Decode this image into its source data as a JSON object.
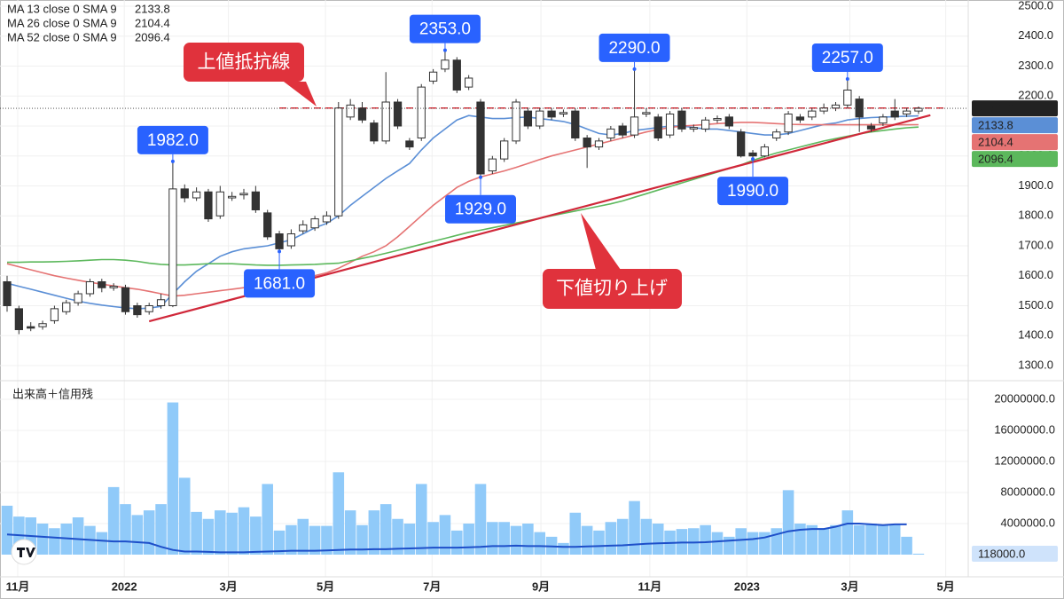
{
  "chart_data": {
    "type": "candlestick",
    "x": [
      0,
      1,
      2,
      3,
      4,
      5,
      6,
      7,
      8,
      9,
      10,
      11,
      12,
      13,
      14,
      15,
      16,
      17,
      18,
      19,
      20,
      21,
      22,
      23,
      24,
      25,
      26,
      27,
      28,
      29,
      30,
      31,
      32,
      33,
      34,
      35,
      36,
      37,
      38,
      39,
      40,
      41,
      42,
      43,
      44,
      45,
      46,
      47,
      48,
      49,
      50,
      51,
      52,
      53,
      54,
      55,
      56,
      57,
      58,
      59,
      60,
      61,
      62,
      63,
      64,
      65,
      66,
      67,
      68,
      69,
      70,
      71,
      72,
      73,
      74,
      75,
      76,
      77
    ],
    "open": [
      1580,
      1490,
      1430,
      1430,
      1450,
      1480,
      1510,
      1540,
      1580,
      1560,
      1560,
      1500,
      1480,
      1500,
      1500,
      1890,
      1860,
      1880,
      1800,
      1860,
      1870,
      1880,
      1810,
      1740,
      1700,
      1750,
      1760,
      1780,
      1800,
      2130,
      2160,
      2110,
      2050,
      2180,
      2050,
      2060,
      2250,
      2290,
      2320,
      2230,
      2180,
      1950,
      1990,
      2050,
      2150,
      2100,
      2150,
      2140,
      2150,
      2060,
      2030,
      2060,
      2100,
      2070,
      2140,
      2130,
      2070,
      2150,
      2090,
      2090,
      2120,
      2130,
      2080,
      2010,
      2000,
      2060,
      2080,
      2130,
      2130,
      2150,
      2160,
      2170,
      2190,
      2100,
      2110,
      2150,
      2140,
      2150
    ],
    "high": [
      1600,
      1500,
      1445,
      1450,
      1500,
      1520,
      1550,
      1590,
      1590,
      1575,
      1570,
      1510,
      1510,
      1540,
      1982,
      1905,
      1895,
      1890,
      1900,
      1880,
      1890,
      1900,
      1820,
      1750,
      1755,
      1785,
      1800,
      1815,
      2180,
      2190,
      2180,
      2120,
      2280,
      2190,
      2060,
      2240,
      2290,
      2353,
      2330,
      2270,
      2190,
      2000,
      2060,
      2190,
      2160,
      2160,
      2160,
      2155,
      2160,
      2070,
      2060,
      2100,
      2110,
      2290,
      2160,
      2140,
      2150,
      2160,
      2105,
      2130,
      2135,
      2140,
      2090,
      2020,
      2040,
      2090,
      2150,
      2140,
      2160,
      2175,
      2180,
      2257,
      2200,
      2110,
      2140,
      2190,
      2160,
      2165
    ],
    "low": [
      1480,
      1405,
      1415,
      1420,
      1440,
      1470,
      1500,
      1530,
      1545,
      1550,
      1470,
      1460,
      1470,
      1490,
      1495,
      1845,
      1850,
      1780,
      1790,
      1850,
      1855,
      1810,
      1720,
      1681,
      1690,
      1740,
      1750,
      1770,
      1790,
      2120,
      2110,
      2040,
      2040,
      2090,
      2020,
      2050,
      2240,
      2280,
      2210,
      2220,
      1929,
      1940,
      1980,
      2040,
      2090,
      2090,
      2120,
      2130,
      2050,
      1960,
      2020,
      2050,
      2060,
      2060,
      2130,
      2050,
      2060,
      2080,
      2080,
      2080,
      2110,
      2090,
      1995,
      1990,
      1995,
      2050,
      2070,
      2110,
      2120,
      2140,
      2150,
      2160,
      2080,
      2080,
      2100,
      2120,
      2130,
      2140
    ],
    "close": [
      1500,
      1420,
      1425,
      1440,
      1490,
      1510,
      1540,
      1580,
      1560,
      1565,
      1480,
      1470,
      1500,
      1520,
      1890,
      1860,
      1880,
      1790,
      1880,
      1865,
      1875,
      1820,
      1730,
      1690,
      1740,
      1770,
      1790,
      1800,
      2160,
      2170,
      2120,
      2050,
      2180,
      2100,
      2030,
      2230,
      2280,
      2320,
      2220,
      2260,
      1940,
      1990,
      2050,
      2180,
      2100,
      2150,
      2130,
      2145,
      2060,
      2030,
      2050,
      2090,
      2070,
      2130,
      2145,
      2060,
      2140,
      2090,
      2095,
      2120,
      2125,
      2100,
      2000,
      2000,
      2030,
      2080,
      2140,
      2120,
      2150,
      2160,
      2170,
      2220,
      2130,
      2090,
      2130,
      2130,
      2150,
      2159
    ],
    "last_label": "2159.0",
    "series": [
      {
        "name": "MA 13 close 0 SMA 9",
        "color": "#5b8fd6",
        "values": [
          1575,
          1565,
          1555,
          1545,
          1535,
          1525,
          1515,
          1508,
          1502,
          1497,
          1493,
          1490,
          1492,
          1498,
          1540,
          1580,
          1615,
          1640,
          1665,
          1680,
          1690,
          1695,
          1700,
          1710,
          1720,
          1740,
          1760,
          1775,
          1800,
          1835,
          1865,
          1895,
          1925,
          1950,
          1975,
          2020,
          2060,
          2090,
          2120,
          2135,
          2130,
          2125,
          2125,
          2128,
          2130,
          2125,
          2120,
          2115,
          2105,
          2090,
          2075,
          2070,
          2075,
          2085,
          2090,
          2095,
          2100,
          2100,
          2095,
          2090,
          2090,
          2085,
          2080,
          2075,
          2070,
          2070,
          2075,
          2085,
          2095,
          2105,
          2110,
          2120,
          2125,
          2128,
          2130,
          2131,
          2133,
          2133.8
        ]
      },
      {
        "name": "MA 26 close 0 SMA 9",
        "color": "#e57373",
        "values": [
          1640,
          1630,
          1620,
          1610,
          1600,
          1592,
          1585,
          1578,
          1572,
          1566,
          1560,
          1555,
          1548,
          1540,
          1532,
          1535,
          1540,
          1545,
          1550,
          1555,
          1560,
          1565,
          1572,
          1580,
          1588,
          1595,
          1600,
          1610,
          1625,
          1645,
          1665,
          1680,
          1700,
          1730,
          1765,
          1800,
          1835,
          1865,
          1895,
          1915,
          1930,
          1940,
          1950,
          1962,
          1975,
          1988,
          2000,
          2010,
          2020,
          2030,
          2040,
          2050,
          2060,
          2070,
          2080,
          2088,
          2095,
          2100,
          2102,
          2105,
          2108,
          2110,
          2112,
          2112,
          2110,
          2108,
          2106,
          2105,
          2104,
          2104,
          2104,
          2104,
          2104,
          2104,
          2104,
          2104,
          2104,
          2104.4
        ]
      },
      {
        "name": "MA 52 close 0 SMA 9",
        "color": "#5cb85c",
        "values": [
          1645,
          1645,
          1646,
          1646,
          1647,
          1648,
          1650,
          1652,
          1654,
          1654,
          1652,
          1648,
          1642,
          1638,
          1636,
          1636,
          1638,
          1640,
          1640,
          1640,
          1638,
          1636,
          1635,
          1635,
          1636,
          1637,
          1638,
          1640,
          1642,
          1650,
          1658,
          1666,
          1675,
          1685,
          1695,
          1705,
          1715,
          1725,
          1735,
          1745,
          1752,
          1760,
          1768,
          1776,
          1784,
          1792,
          1800,
          1808,
          1816,
          1824,
          1832,
          1840,
          1850,
          1862,
          1874,
          1886,
          1898,
          1910,
          1922,
          1934,
          1946,
          1958,
          1970,
          1985,
          1998,
          2010,
          2020,
          2030,
          2040,
          2050,
          2058,
          2066,
          2074,
          2080,
          2085,
          2090,
          2094,
          2096.4
        ]
      }
    ],
    "xlim": [
      -0.6,
      81.05
    ],
    "xticks": [
      {
        "value": 0.9,
        "label": "11月"
      },
      {
        "value": 9.9,
        "label": "2022"
      },
      {
        "value": 18.7,
        "label": "3月"
      },
      {
        "value": 26.9,
        "label": "5月"
      },
      {
        "value": 35.9,
        "label": "7月"
      },
      {
        "value": 45.1,
        "label": "9月"
      },
      {
        "value": 54.3,
        "label": "11月"
      },
      {
        "value": 62.5,
        "label": "2023"
      },
      {
        "value": 71.2,
        "label": "3月"
      },
      {
        "value": 79.3,
        "label": "5月"
      }
    ],
    "ylim": [
      1252.6,
      2520.7
    ],
    "yticks": [
      {
        "value": 1300,
        "label": "1300.0"
      },
      {
        "value": 1400,
        "label": "1400.0"
      },
      {
        "value": 1500,
        "label": "1500.0"
      },
      {
        "value": 1600,
        "label": "1600.0"
      },
      {
        "value": 1700,
        "label": "1700.0"
      },
      {
        "value": 1800,
        "label": "1800.0"
      },
      {
        "value": 1900,
        "label": "1900.0"
      },
      {
        "value": 2000,
        "label": "2000.0"
      },
      {
        "value": 2100,
        "label": "2100.0"
      },
      {
        "value": 2200,
        "label": "2200.0"
      },
      {
        "value": 2300,
        "label": "2300.0"
      },
      {
        "value": 2400,
        "label": "2400.0"
      },
      {
        "value": 2500,
        "label": "2500.0"
      }
    ],
    "annotations": [
      {
        "x": 14,
        "value": 1982,
        "label": "1982.0"
      },
      {
        "x": 23,
        "value": 1681,
        "label": "1681.0"
      },
      {
        "x": 37,
        "value": 2353,
        "label": "2353.0"
      },
      {
        "x": 40,
        "value": 1929,
        "label": "1929.0"
      },
      {
        "x": 53,
        "value": 2290,
        "label": "2290.0"
      },
      {
        "x": 63,
        "value": 1990,
        "label": "1990.0"
      },
      {
        "x": 71,
        "value": 2257,
        "label": "2257.0"
      }
    ],
    "resistance": {
      "label": "上値抵抗線",
      "value": 2160
    },
    "support": {
      "label": "下値切り上げ",
      "x": [
        12,
        78
      ],
      "values": [
        1448,
        2136
      ]
    },
    "volume_title": "出来高＋信用残",
    "volume": [
      6300000,
      4900000,
      4800000,
      4000000,
      3400000,
      4000000,
      4800000,
      3700000,
      2900000,
      8700000,
      6500000,
      5100000,
      5700000,
      6500000,
      19600000,
      9900000,
      5500000,
      4600000,
      5700000,
      5400000,
      6100000,
      4900000,
      9100000,
      3100000,
      3800000,
      4600000,
      3700000,
      3700000,
      10600000,
      5700000,
      3800000,
      5700000,
      6500000,
      4600000,
      4000000,
      9100000,
      4200000,
      5100000,
      3100000,
      4000000,
      9100000,
      4200000,
      4200000,
      3700000,
      4000000,
      2900000,
      2300000,
      1500000,
      5400000,
      3700000,
      3100000,
      4200000,
      4600000,
      6900000,
      4600000,
      4000000,
      3100000,
      3300000,
      3400000,
      3800000,
      2900000,
      2300000,
      3400000,
      2900000,
      2900000,
      3400000,
      8300000,
      4000000,
      3800000,
      3400000,
      3800000,
      5700000,
      3800000,
      4000000,
      3800000,
      3800000,
      2300000,
      118000
    ],
    "volume_color": "#90caf9",
    "volume_last_label": "118000.0",
    "volume_ma": [
      2600000,
      2500000,
      2400000,
      2300000,
      2200000,
      2100000,
      2000000,
      1900000,
      1800000,
      1700000,
      1700000,
      1600000,
      1500000,
      1000000,
      600000,
      400000,
      400000,
      350000,
      300000,
      300000,
      300000,
      350000,
      400000,
      450000,
      500000,
      500000,
      500000,
      550000,
      600000,
      650000,
      650000,
      700000,
      700000,
      750000,
      800000,
      850000,
      900000,
      900000,
      900000,
      950000,
      1000000,
      1100000,
      1100000,
      1150000,
      1100000,
      1100000,
      1050000,
      1000000,
      1000000,
      1050000,
      1100000,
      1150000,
      1200000,
      1300000,
      1400000,
      1450000,
      1500000,
      1550000,
      1550000,
      1600000,
      1700000,
      1800000,
      1900000,
      2000000,
      2200000,
      2600000,
      3000000,
      3200000,
      3300000,
      3300000,
      3600000,
      4000000,
      4000000,
      3900000,
      3800000,
      3900000,
      3900000,
      null
    ],
    "volume_ma_color": "#1e4fc9",
    "volume_ylim": [
      -2630000,
      22060000
    ],
    "volume_yticks": [
      {
        "value": 4000000,
        "label": "4000000.0"
      },
      {
        "value": 8000000,
        "label": "8000000.0"
      },
      {
        "value": 12000000,
        "label": "12000000.0"
      },
      {
        "value": 16000000,
        "label": "16000000.0"
      },
      {
        "value": 20000000,
        "label": "20000000.0"
      }
    ],
    "grid": true
  }
}
